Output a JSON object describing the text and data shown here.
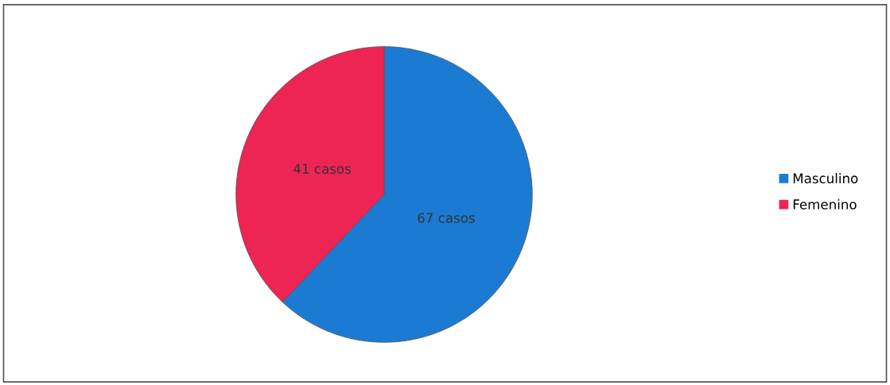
{
  "chart_data": {
    "type": "pie",
    "categories": [
      "Masculino",
      "Femenino"
    ],
    "values": [
      67,
      41
    ],
    "colors": [
      "#1b7bd3",
      "#ee2455"
    ],
    "value_labels": [
      "67 casos",
      "41 casos"
    ],
    "legend": "right"
  }
}
